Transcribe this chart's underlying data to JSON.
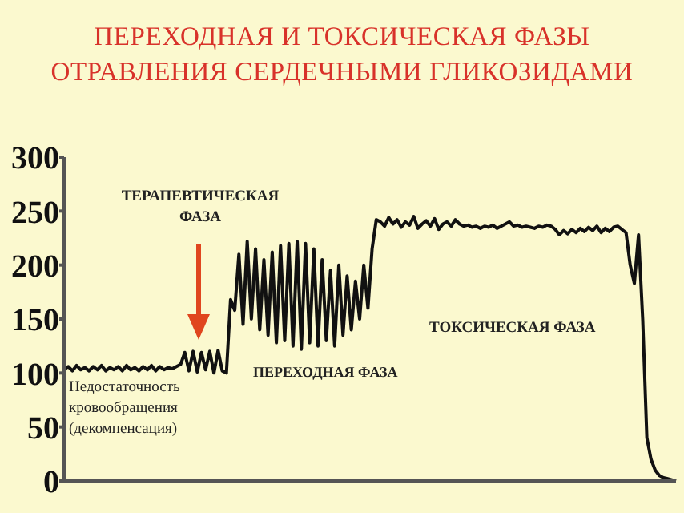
{
  "chart_data": {
    "type": "line",
    "title": "ПЕРЕХОДНАЯ И ТОКСИЧЕСКАЯ ФАЗЫ ОТРАВЛЕНИЯ СЕРДЕЧНЫМИ ГЛИКОЗИДАМИ",
    "categories": [
      null,
      null,
      null,
      null,
      null,
      null,
      null,
      null,
      null,
      null,
      null,
      null,
      null,
      null,
      null,
      null,
      null,
      null,
      null,
      null,
      null,
      null,
      null,
      null,
      null,
      null,
      null,
      null,
      null,
      null,
      null,
      null,
      null,
      null,
      null,
      null,
      null,
      null,
      null,
      null,
      null,
      null,
      null,
      null,
      null,
      null,
      null,
      null,
      null,
      null,
      null,
      null,
      null,
      null,
      null,
      null,
      null,
      null,
      null,
      null,
      null,
      null,
      null,
      null,
      null,
      null,
      null,
      null,
      null,
      null,
      null,
      null,
      null,
      null,
      null,
      null,
      null,
      null,
      null,
      null,
      null,
      null,
      null,
      null,
      null,
      null,
      null,
      null,
      null,
      null,
      null,
      null,
      null,
      null,
      null,
      null,
      null,
      null,
      null,
      null,
      null,
      null,
      null,
      null,
      null,
      null,
      null,
      null,
      null,
      null,
      null,
      null,
      null,
      null,
      null,
      null,
      null,
      null,
      null,
      null,
      null,
      null,
      null,
      null,
      null,
      null,
      null,
      null,
      null,
      null,
      null,
      null,
      null,
      null,
      null,
      null,
      null,
      null,
      null,
      null,
      null,
      null,
      null,
      null,
      null,
      null,
      null,
      null
    ],
    "series": [
      {
        "color": "#111111",
        "values": [
          103,
          106,
          102,
          107,
          103,
          105,
          102,
          106,
          103,
          107,
          102,
          105,
          103,
          106,
          102,
          107,
          103,
          105,
          102,
          106,
          103,
          107,
          102,
          106,
          103,
          105,
          104,
          106,
          108,
          119,
          102,
          120,
          101,
          119,
          103,
          120,
          100,
          121,
          102,
          100,
          168,
          158,
          210,
          145,
          222,
          150,
          215,
          140,
          205,
          135,
          212,
          128,
          218,
          130,
          220,
          125,
          222,
          122,
          220,
          128,
          215,
          125,
          205,
          130,
          195,
          125,
          200,
          135,
          190,
          140,
          185,
          150,
          200,
          160,
          215,
          242,
          240,
          236,
          244,
          238,
          242,
          235,
          240,
          237,
          245,
          234,
          238,
          241,
          236,
          243,
          233,
          238,
          240,
          236,
          242,
          238,
          236,
          237,
          235,
          236,
          234,
          236,
          235,
          237,
          234,
          236,
          238,
          240,
          236,
          237,
          235,
          236,
          235,
          234,
          236,
          235,
          237,
          236,
          233,
          228,
          232,
          229,
          233,
          230,
          234,
          231,
          235,
          232,
          236,
          230,
          234,
          231,
          235,
          236,
          233,
          230,
          200,
          183,
          228,
          150,
          40,
          20,
          10,
          5,
          3,
          2,
          1,
          0
        ]
      }
    ],
    "ylim": [
      0,
      300
    ],
    "yticks": [
      0,
      50,
      100,
      150,
      200,
      250,
      300
    ],
    "tick_labels": "y",
    "grid": false,
    "legend": false,
    "annotations": [
      "ТЕРАПЕВТИЧЕСКАЯ ФАЗА",
      "ПЕРЕХОДНАЯ ФАЗА",
      "Недостаточность кровообращения (декомпенсация)",
      "ТОКСИЧЕСКАЯ ФАЗА"
    ]
  }
}
